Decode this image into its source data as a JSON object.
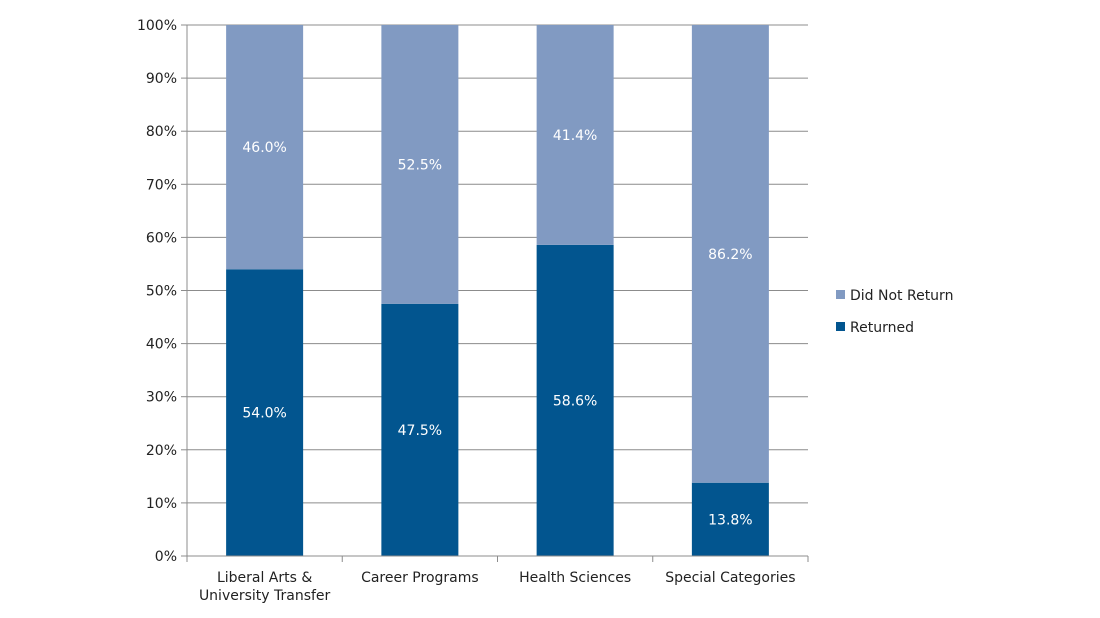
{
  "chart_data": {
    "type": "bar",
    "stacked": true,
    "orientation": "vertical",
    "categories": [
      [
        "Liberal Arts &",
        "University Transfer"
      ],
      [
        "Career Programs"
      ],
      [
        "Health Sciences"
      ],
      [
        "Special Categories"
      ]
    ],
    "series": [
      {
        "name": "Returned",
        "values": [
          54.0,
          47.5,
          58.6,
          13.8
        ],
        "labels": [
          "54.0%",
          "47.5%",
          "58.6%",
          "13.8%"
        ],
        "color": "#02558f"
      },
      {
        "name": "Did Not Return",
        "values": [
          46.0,
          52.5,
          41.4,
          86.2
        ],
        "labels": [
          "46.0%",
          "52.5%",
          "41.4%",
          "86.2%"
        ],
        "color": "#819ac2"
      }
    ],
    "y_ticks": [
      "0%",
      "10%",
      "20%",
      "30%",
      "40%",
      "50%",
      "60%",
      "70%",
      "80%",
      "90%",
      "100%"
    ],
    "ylim": [
      0,
      100
    ],
    "grid": true,
    "legend_position": "right",
    "legend_order": [
      "Did Not Return",
      "Returned"
    ],
    "title": "",
    "xlabel": "",
    "ylabel": ""
  }
}
